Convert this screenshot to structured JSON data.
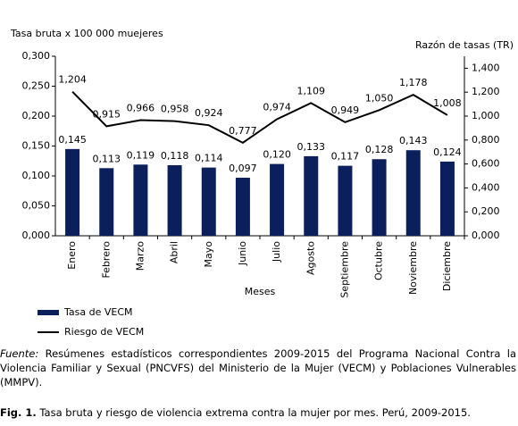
{
  "chart_data": {
    "type": "bar_line",
    "y_label": "Tasa bruta x 100 000 muejeres",
    "y2_label": "Razón de tasas (TR)",
    "x_label": "Meses",
    "categories": [
      "Enero",
      "Febrero",
      "Marzo",
      "Abril",
      "Mayo",
      "Junio",
      "Julio",
      "Agosto",
      "Septiembre",
      "Octubre",
      "Noviembre",
      "Diciembre"
    ],
    "series": [
      {
        "name": "Tasa de VECM",
        "type": "bar",
        "color": "#0b1f5c",
        "values": [
          0.145,
          0.113,
          0.119,
          0.118,
          0.114,
          0.097,
          0.12,
          0.133,
          0.117,
          0.128,
          0.143,
          0.124
        ],
        "value_labels": [
          "0,145",
          "0,113",
          "0,119",
          "0,118",
          "0,114",
          "0,097",
          "0,120",
          "0,133",
          "0,117",
          "0,128",
          "0,143",
          "0,124"
        ]
      },
      {
        "name": "Riesgo de VECM",
        "type": "line",
        "axis": "y2",
        "color": "#000000",
        "values": [
          1.204,
          0.915,
          0.966,
          0.958,
          0.924,
          0.777,
          0.974,
          1.109,
          0.949,
          1.05,
          1.178,
          1.008
        ],
        "value_labels": [
          "1,204",
          "0,915",
          "0,966",
          "0,958",
          "0,924",
          "0,777",
          "0,974",
          "1,109",
          "0,949",
          "1,050",
          "1,178",
          "1,008"
        ]
      }
    ],
    "ylim": [
      0,
      0.3
    ],
    "yticks": [
      {
        "value": 0,
        "label": "0,000"
      },
      {
        "value": 0.05,
        "label": "0,050"
      },
      {
        "value": 0.1,
        "label": "0,100"
      },
      {
        "value": 0.15,
        "label": "0,150"
      },
      {
        "value": 0.2,
        "label": "0,200"
      },
      {
        "value": 0.25,
        "label": "0,250"
      },
      {
        "value": 0.3,
        "label": "0,300"
      }
    ],
    "y2lim": [
      0,
      1.5
    ],
    "y2ticks": [
      {
        "value": 0,
        "label": "0,000"
      },
      {
        "value": 0.2,
        "label": "0,200"
      },
      {
        "value": 0.4,
        "label": "0,400"
      },
      {
        "value": 0.6,
        "label": "0,600"
      },
      {
        "value": 0.8,
        "label": "0,800"
      },
      {
        "value": 1,
        "label": "1,000"
      },
      {
        "value": 1.2,
        "label": "1,200"
      },
      {
        "value": 1.4,
        "label": "1,400"
      }
    ],
    "legend": "bottom-left"
  },
  "source": {
    "label": "Fuente:",
    "text": " Resúmenes estadísticos correspondientes 2009-2015 del Programa Nacional Contra la Violencia Familiar y Sexual (PNCVFS) del Ministerio de la Mujer  (VECM) y Poblaciones Vulnerables (MMPV)."
  },
  "caption": {
    "label": "Fig. 1.",
    "text": " Tasa bruta y riesgo de violencia extrema contra la mujer por mes. Perú, 2009-2015."
  }
}
